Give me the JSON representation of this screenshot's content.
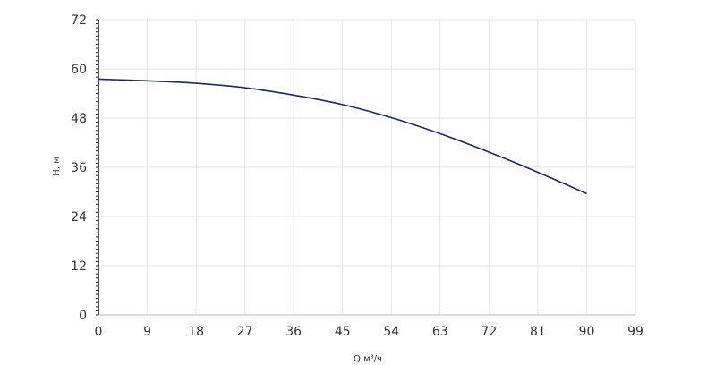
{
  "chart_data": {
    "type": "line",
    "title": "",
    "xlabel": "Q м³/ч",
    "ylabel": "H, м",
    "xlim": [
      0,
      99
    ],
    "ylim": [
      0,
      72
    ],
    "x_ticks": [
      "0",
      "9",
      "18",
      "27",
      "36",
      "45",
      "54",
      "63",
      "72",
      "81",
      "90",
      "99"
    ],
    "y_ticks": [
      "0",
      "12",
      "24",
      "36",
      "48",
      "60",
      "72"
    ],
    "grid": true,
    "legend": "none",
    "colors": {
      "line": "#1b2a63",
      "grid": "#e6e6e6",
      "axis": "#1a1a1a",
      "baseline": "#c8d2e6"
    },
    "series": [
      {
        "x": [
          0,
          9,
          18,
          27,
          36,
          45,
          54,
          63,
          72,
          81,
          90
        ],
        "y": [
          57.5,
          57.1,
          56.5,
          55.4,
          53.6,
          51.3,
          48.1,
          44.2,
          39.7,
          34.8,
          29.6
        ]
      }
    ]
  }
}
